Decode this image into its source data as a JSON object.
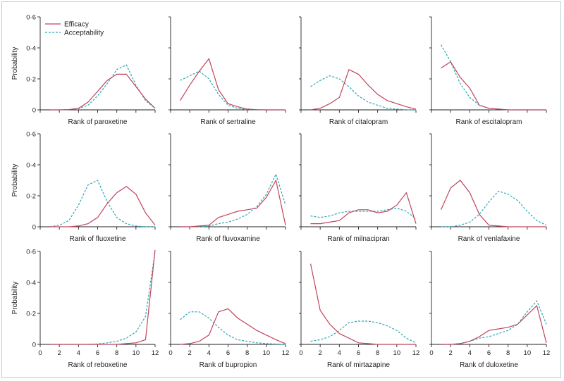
{
  "chart_data": {
    "type": "line",
    "title": "",
    "ylabel": "Probability",
    "xlim": [
      0,
      12
    ],
    "ylim": [
      0,
      0.6
    ],
    "xticks": [
      "0",
      "2",
      "4",
      "6",
      "8",
      "10",
      "12"
    ],
    "yticks": [
      "0",
      "0·2",
      "0·4",
      "0·6"
    ],
    "x": [
      1,
      2,
      3,
      4,
      5,
      6,
      7,
      8,
      9,
      10,
      11,
      12
    ],
    "legend": {
      "position": "top-left",
      "entries": [
        {
          "name": "Efficacy",
          "color": "#c0455b",
          "dash": "solid"
        },
        {
          "name": "Acceptability",
          "color": "#2ba8b6",
          "dash": "dashed"
        }
      ]
    },
    "panels": [
      {
        "xlabel": "Rank of paroxetine",
        "efficacy": [
          0,
          0,
          0.002,
          0.01,
          0.05,
          0.12,
          0.19,
          0.23,
          0.23,
          0.15,
          0.07,
          0.01
        ],
        "acceptability": [
          0,
          0,
          0.002,
          0.008,
          0.03,
          0.09,
          0.17,
          0.26,
          0.29,
          0.16,
          0.06,
          0.01
        ]
      },
      {
        "xlabel": "Rank of sertraline",
        "efficacy": [
          0.06,
          0.16,
          0.25,
          0.33,
          0.13,
          0.04,
          0.02,
          0.005,
          0.001,
          0,
          0,
          0
        ],
        "acceptability": [
          0.19,
          0.22,
          0.25,
          0.2,
          0.1,
          0.03,
          0.01,
          0.002,
          0,
          0,
          0,
          0
        ]
      },
      {
        "xlabel": "Rank of citalopram",
        "efficacy": [
          0,
          0.01,
          0.04,
          0.08,
          0.26,
          0.23,
          0.16,
          0.1,
          0.06,
          0.04,
          0.02,
          0.005
        ],
        "acceptability": [
          0.15,
          0.19,
          0.22,
          0.2,
          0.15,
          0.09,
          0.05,
          0.03,
          0.01,
          0.005,
          0,
          0
        ]
      },
      {
        "xlabel": "Rank of escitalopram",
        "efficacy": [
          0.27,
          0.31,
          0.21,
          0.14,
          0.03,
          0.01,
          0.005,
          0,
          0,
          0,
          0,
          0
        ],
        "acceptability": [
          0.42,
          0.31,
          0.17,
          0.08,
          0.03,
          0.01,
          0.005,
          0,
          0,
          0,
          0,
          0
        ]
      },
      {
        "xlabel": "Rank of fluoxetine",
        "efficacy": [
          0,
          0,
          0,
          0.005,
          0.02,
          0.06,
          0.15,
          0.22,
          0.26,
          0.21,
          0.09,
          0.01
        ],
        "acceptability": [
          0,
          0.01,
          0.04,
          0.14,
          0.27,
          0.3,
          0.16,
          0.06,
          0.02,
          0.005,
          0,
          0
        ]
      },
      {
        "xlabel": "Rank of fluvoxamine",
        "efficacy": [
          0,
          0,
          0.005,
          0.01,
          0.06,
          0.08,
          0.1,
          0.11,
          0.12,
          0.19,
          0.3,
          0.01
        ],
        "acceptability": [
          0,
          0,
          0,
          0.005,
          0.02,
          0.03,
          0.05,
          0.08,
          0.13,
          0.21,
          0.34,
          0.14
        ]
      },
      {
        "xlabel": "Rank of milnacipran",
        "efficacy": [
          0.02,
          0.02,
          0.03,
          0.04,
          0.09,
          0.11,
          0.11,
          0.09,
          0.1,
          0.14,
          0.22,
          0.02
        ],
        "acceptability": [
          0.07,
          0.06,
          0.07,
          0.09,
          0.1,
          0.1,
          0.1,
          0.1,
          0.11,
          0.12,
          0.1,
          0.05
        ]
      },
      {
        "xlabel": "Rank of venlafaxine",
        "efficacy": [
          0.11,
          0.25,
          0.3,
          0.22,
          0.08,
          0.01,
          0.005,
          0,
          0,
          0,
          0,
          0
        ],
        "acceptability": [
          0,
          0,
          0.01,
          0.03,
          0.08,
          0.16,
          0.23,
          0.21,
          0.17,
          0.1,
          0.04,
          0.01
        ]
      },
      {
        "xlabel": "Rank of reboxetine",
        "efficacy": [
          0,
          0,
          0,
          0,
          0,
          0,
          0,
          0,
          0.005,
          0.01,
          0.03,
          0.61
        ],
        "acceptability": [
          0,
          0,
          0,
          0,
          0.001,
          0.003,
          0.01,
          0.02,
          0.04,
          0.08,
          0.18,
          0.6
        ]
      },
      {
        "xlabel": "Rank of bupropion",
        "efficacy": [
          0,
          0.005,
          0.02,
          0.06,
          0.21,
          0.23,
          0.17,
          0.13,
          0.09,
          0.06,
          0.03,
          0.005
        ],
        "acceptability": [
          0.16,
          0.21,
          0.21,
          0.17,
          0.11,
          0.06,
          0.03,
          0.02,
          0.01,
          0.005,
          0.002,
          0
        ]
      },
      {
        "xlabel": "Rank of mirtazapine",
        "efficacy": [
          0.52,
          0.22,
          0.13,
          0.07,
          0.04,
          0.01,
          0.005,
          0,
          0,
          0,
          0,
          0
        ],
        "acceptability": [
          0.02,
          0.03,
          0.05,
          0.09,
          0.14,
          0.15,
          0.15,
          0.14,
          0.12,
          0.09,
          0.04,
          0.01
        ]
      },
      {
        "xlabel": "Rank of duloxetine",
        "efficacy": [
          0,
          0,
          0.005,
          0.02,
          0.05,
          0.09,
          0.1,
          0.11,
          0.13,
          0.19,
          0.25,
          0.01
        ],
        "acceptability": [
          0,
          0,
          0.005,
          0.02,
          0.04,
          0.05,
          0.07,
          0.09,
          0.13,
          0.21,
          0.28,
          0.13
        ]
      }
    ]
  }
}
